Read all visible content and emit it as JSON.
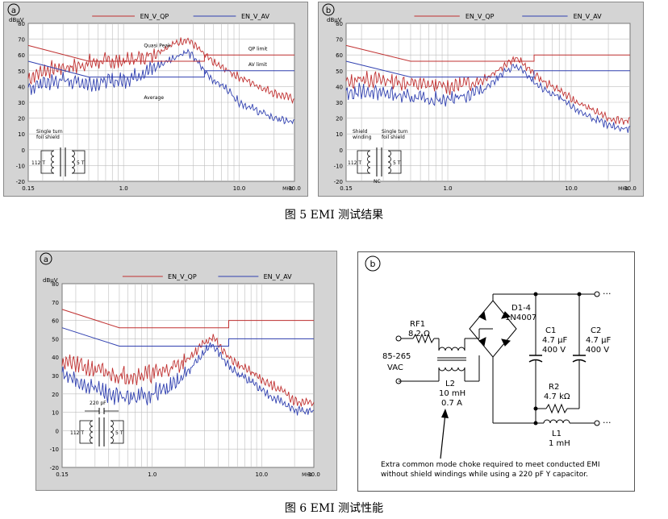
{
  "captions": {
    "fig5": "图 5 EMI 测试结果",
    "fig6": "图 6 EMI 测试性能"
  },
  "colors": {
    "qp": "#c03030",
    "av": "#3040b0",
    "qp_limit": "#c03030",
    "av_limit": "#3040b0",
    "panel_bg": "#d4d4d4",
    "plot_bg": "#ffffff",
    "grid": "#bdbdbd"
  },
  "chart_data": [
    {
      "id": "a",
      "type": "line",
      "panel_label": "a",
      "ylabel": "dBµV",
      "xlabel": "MHz",
      "xscale": "log",
      "xlim": [
        0.15,
        30.0
      ],
      "ylim": [
        -20,
        80
      ],
      "xticks": [
        "0.15",
        "1.0",
        "10.0",
        "30.0"
      ],
      "yticks": [
        "80",
        "70",
        "60",
        "50",
        "40",
        "30",
        "20",
        "10",
        "0",
        "-10",
        "-20"
      ],
      "legend": [
        "EN_V_QP",
        "EN_V_AV"
      ],
      "legend_placement": "top",
      "annotations": [
        "Quasi Peak",
        "Average",
        "QP limit",
        "AV limit"
      ],
      "inset": {
        "label1": "Single turn",
        "label2": "foil shield",
        "left": "112 T",
        "right": "5 T"
      },
      "series": [
        {
          "name": "EN_V_QP",
          "x": [
            0.15,
            0.2,
            0.3,
            0.4,
            0.5,
            0.7,
            1.0,
            1.5,
            2.0,
            2.5,
            3.0,
            3.5,
            4.0,
            5.0,
            6.0,
            8.0,
            10.0,
            15.0,
            20.0,
            30.0
          ],
          "y": [
            45,
            50,
            52,
            53,
            55,
            56,
            56,
            59,
            62,
            66,
            68,
            70,
            67,
            60,
            55,
            50,
            46,
            40,
            36,
            32
          ]
        },
        {
          "name": "EN_V_AV",
          "x": [
            0.15,
            0.2,
            0.3,
            0.4,
            0.5,
            0.7,
            1.0,
            1.5,
            2.0,
            2.5,
            3.0,
            3.5,
            4.0,
            5.0,
            6.0,
            8.0,
            10.0,
            15.0,
            20.0,
            30.0
          ],
          "y": [
            38,
            42,
            44,
            43,
            42,
            43,
            44,
            49,
            53,
            57,
            60,
            62,
            59,
            50,
            44,
            38,
            30,
            24,
            20,
            17
          ]
        },
        {
          "name": "QP limit",
          "x": [
            0.15,
            0.5,
            5.0,
            5.0,
            30.0
          ],
          "y": [
            66,
            56,
            56,
            60,
            60
          ]
        },
        {
          "name": "AV limit",
          "x": [
            0.15,
            0.5,
            5.0,
            5.0,
            30.0
          ],
          "y": [
            56,
            46,
            46,
            50,
            50
          ]
        }
      ]
    },
    {
      "id": "b",
      "type": "line",
      "panel_label": "b",
      "ylabel": "dBµV",
      "xlabel": "MHz",
      "xscale": "log",
      "xlim": [
        0.15,
        30.0
      ],
      "ylim": [
        -20,
        80
      ],
      "xticks": [
        "0.15",
        "1.0",
        "10.0",
        "30.0"
      ],
      "yticks": [
        "80",
        "70",
        "60",
        "50",
        "40",
        "30",
        "20",
        "10",
        "0",
        "-10",
        "-20"
      ],
      "legend": [
        "EN_V_QP",
        "EN_V_AV"
      ],
      "legend_placement": "top",
      "inset": {
        "label1": "Shield",
        "label2": "winding",
        "label3": "Single turn",
        "label4": "foil shield",
        "left": "112 T",
        "right": "5 T",
        "nc": "NC"
      },
      "series": [
        {
          "name": "EN_V_QP",
          "x": [
            0.15,
            0.2,
            0.3,
            0.4,
            0.5,
            0.7,
            1.0,
            1.5,
            2.0,
            2.5,
            3.0,
            3.5,
            4.0,
            5.0,
            6.0,
            8.0,
            10.0,
            15.0,
            20.0,
            30.0
          ],
          "y": [
            42,
            45,
            44,
            43,
            42,
            41,
            40,
            42,
            45,
            50,
            55,
            58,
            55,
            48,
            43,
            38,
            32,
            25,
            20,
            18
          ]
        },
        {
          "name": "EN_V_AV",
          "x": [
            0.15,
            0.2,
            0.3,
            0.4,
            0.5,
            0.7,
            1.0,
            1.5,
            2.0,
            2.5,
            3.0,
            3.5,
            4.0,
            5.0,
            6.0,
            8.0,
            10.0,
            15.0,
            20.0,
            30.0
          ],
          "y": [
            35,
            37,
            36,
            34,
            33,
            32,
            32,
            35,
            39,
            45,
            50,
            53,
            50,
            43,
            38,
            33,
            27,
            20,
            15,
            13
          ]
        },
        {
          "name": "QP limit",
          "x": [
            0.15,
            0.5,
            5.0,
            5.0,
            30.0
          ],
          "y": [
            66,
            56,
            56,
            60,
            60
          ]
        },
        {
          "name": "AV limit",
          "x": [
            0.15,
            0.5,
            5.0,
            5.0,
            30.0
          ],
          "y": [
            56,
            46,
            46,
            50,
            50
          ]
        }
      ]
    },
    {
      "id": "c",
      "type": "line",
      "panel_label": "a",
      "ylabel": "dBµV",
      "xlabel": "MHz",
      "xscale": "log",
      "xlim": [
        0.15,
        30.0
      ],
      "ylim": [
        -20,
        80
      ],
      "xticks": [
        "0.15",
        "1.0",
        "10.0",
        "30.0"
      ],
      "yticks": [
        "80",
        "70",
        "60",
        "50",
        "40",
        "30",
        "20",
        "10",
        "0",
        "-10",
        "-20"
      ],
      "legend": [
        "EN_V_QP",
        "EN_V_AV"
      ],
      "legend_placement": "top",
      "inset": {
        "cap": "220 pF",
        "left": "112 T",
        "right": "5 T"
      },
      "series": [
        {
          "name": "EN_V_QP",
          "x": [
            0.15,
            0.2,
            0.3,
            0.4,
            0.5,
            0.7,
            1.0,
            1.5,
            2.0,
            2.5,
            3.0,
            3.5,
            4.0,
            5.0,
            6.0,
            8.0,
            10.0,
            15.0,
            20.0,
            30.0
          ],
          "y": [
            38,
            36,
            33,
            31,
            30,
            30,
            31,
            34,
            38,
            43,
            48,
            51,
            47,
            40,
            36,
            32,
            28,
            22,
            16,
            15
          ]
        },
        {
          "name": "EN_V_AV",
          "x": [
            0.15,
            0.2,
            0.3,
            0.4,
            0.5,
            0.7,
            1.0,
            1.5,
            2.0,
            2.5,
            3.0,
            3.5,
            4.0,
            5.0,
            6.0,
            8.0,
            10.0,
            15.0,
            20.0,
            30.0
          ],
          "y": [
            30,
            27,
            23,
            20,
            18,
            18,
            20,
            24,
            30,
            37,
            43,
            47,
            43,
            35,
            31,
            27,
            22,
            16,
            11,
            10
          ]
        },
        {
          "name": "QP limit",
          "x": [
            0.15,
            0.5,
            5.0,
            5.0,
            30.0
          ],
          "y": [
            66,
            56,
            56,
            60,
            60
          ]
        },
        {
          "name": "AV limit",
          "x": [
            0.15,
            0.5,
            5.0,
            5.0,
            30.0
          ],
          "y": [
            56,
            46,
            46,
            50,
            50
          ]
        }
      ]
    }
  ],
  "circuit": {
    "panel_label": "b",
    "rf1_name": "RF1",
    "rf1_val": "8.2 Ω",
    "input1": "85-265",
    "input2": "VAC",
    "l2_name": "L2",
    "l2_val1": "10 mH",
    "l2_val2": "0.7 A",
    "d_name": "D1-4",
    "d_val": "1N4007",
    "c1_name": "C1",
    "c1_val1": "4.7 µF",
    "c1_val2": "400 V",
    "c2_name": "C2",
    "c2_val1": "4.7 µF",
    "c2_val2": "400 V",
    "r2_name": "R2",
    "r2_val": "4.7 kΩ",
    "l1_name": "L1",
    "l1_val": "1 mH",
    "note1": "Extra common mode choke required to meet conducted EMI",
    "note2": "without shield windings while using a 220 pF Y capacitor."
  }
}
